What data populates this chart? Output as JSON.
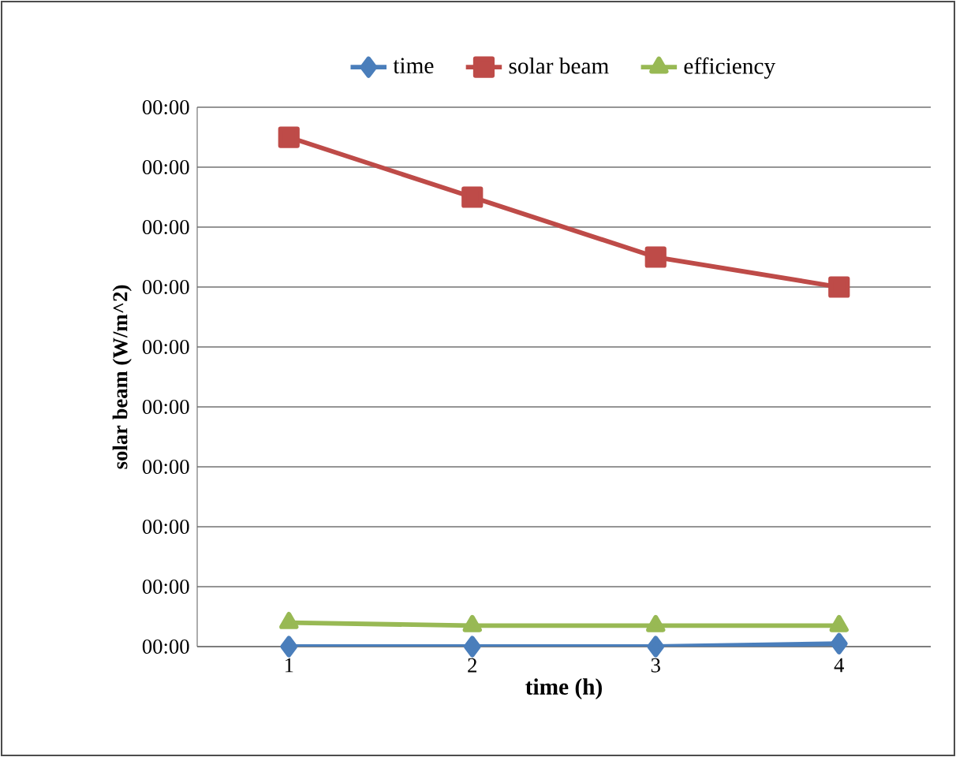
{
  "chart_data": {
    "type": "line",
    "xlabel": "time (h)",
    "ylabel": "solar beam (W/m^2)",
    "categories": [
      "1",
      "2",
      "3",
      "4"
    ],
    "series": [
      {
        "name": "time",
        "color": "#4a7ebb",
        "marker": "diamond",
        "values": [
          0,
          0,
          0,
          0.05
        ]
      },
      {
        "name": "solar beam",
        "color": "#be4b48",
        "marker": "square",
        "values": [
          8.5,
          7.5,
          6.5,
          6.0
        ]
      },
      {
        "name": "efficiency",
        "color": "#98b954",
        "marker": "triangle",
        "values": [
          0.4,
          0.35,
          0.35,
          0.35
        ]
      }
    ],
    "ylim": [
      0,
      9
    ],
    "yticks": [
      {
        "value": 0,
        "label": "00:00"
      },
      {
        "value": 1,
        "label": "00:00"
      },
      {
        "value": 2,
        "label": "00:00"
      },
      {
        "value": 3,
        "label": "00:00"
      },
      {
        "value": 4,
        "label": "00:00"
      },
      {
        "value": 5,
        "label": "00:00"
      },
      {
        "value": 6,
        "label": "00:00"
      },
      {
        "value": 7,
        "label": "00:00"
      },
      {
        "value": 8,
        "label": "00:00"
      },
      {
        "value": 9,
        "label": "00:00"
      }
    ],
    "grid": "y",
    "legend": "top",
    "line_style": "solid"
  }
}
